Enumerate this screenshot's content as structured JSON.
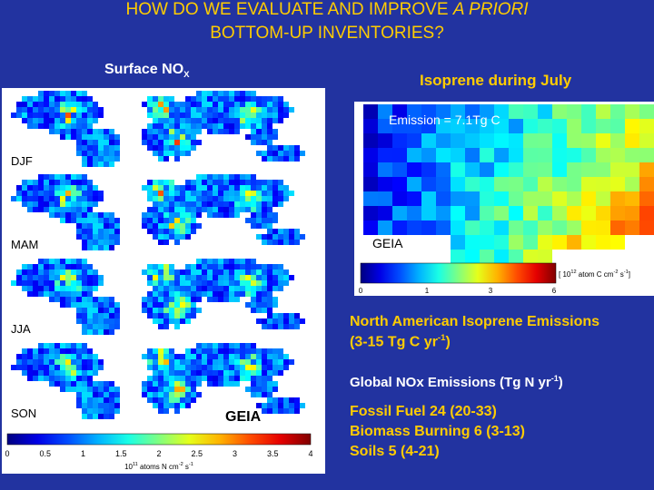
{
  "title": {
    "line1": "HOW DO WE EVALUATE AND IMPROVE",
    "line1_italic": "A PRIORI",
    "line2": "BOTTOM-UP INVENTORIES?"
  },
  "left_panel": {
    "heading_parts": [
      "Surface NO",
      "X"
    ],
    "seasons": [
      "DJF",
      "MAM",
      "JJA",
      "SON"
    ],
    "source": "GEIA",
    "colorbar_ticks": [
      "0",
      "0.5",
      "1",
      "1.5",
      "2",
      "2.5",
      "3",
      "3.5",
      "4"
    ],
    "units_parts": [
      "10",
      "11",
      " atoms N cm",
      "-2",
      " s",
      "-1"
    ]
  },
  "right_panel": {
    "heading": "Isoprene during July",
    "emission": "Emission = 7.1Tg C",
    "source": "GEIA",
    "colorbar_ticks": [
      "0",
      "1",
      "3",
      "6"
    ],
    "units_parts": [
      "[ 10",
      "12",
      " atom C cm",
      "-2",
      " s",
      "-1",
      "]"
    ]
  },
  "na_isoprene": {
    "line1": "North American Isoprene Emissions",
    "line2_parts": [
      "(3-15 Tg C yr",
      "-1",
      ")"
    ]
  },
  "nox": {
    "heading_parts": [
      "Global NOx Emissions (Tg N yr",
      "-1",
      ")"
    ],
    "items": [
      "Fossil Fuel 24 (20-33)",
      "Biomass Burning 6 (3-13)",
      "Soils 5 (4-21)"
    ]
  }
}
